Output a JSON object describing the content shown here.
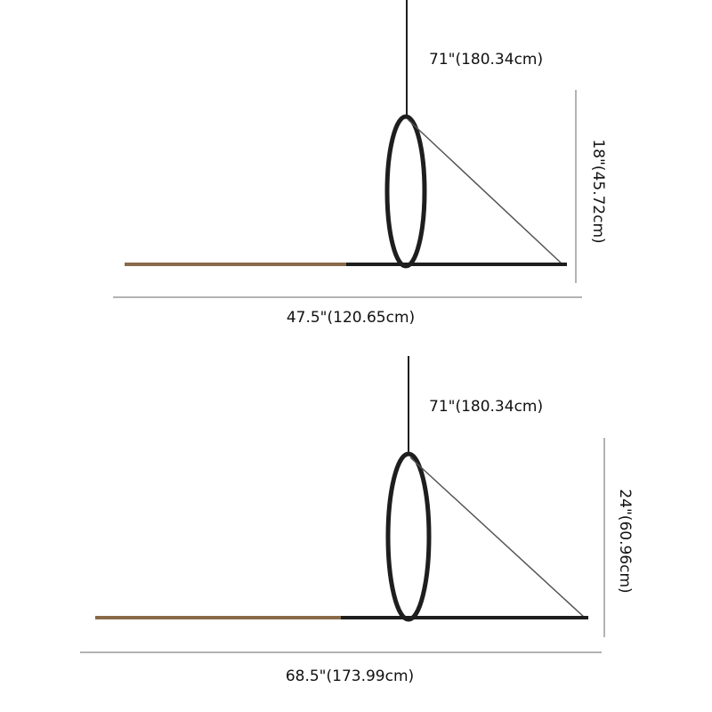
{
  "diagrams": [
    {
      "drop_label": "71\"(180.34cm)",
      "height_label": "18\"(45.72cm)",
      "width_label": "47.5\"(120.65cm)"
    },
    {
      "drop_label": "71\"(180.34cm)",
      "height_label": "24\"(60.96cm)",
      "width_label": "68.5\"(173.99cm)"
    }
  ],
  "colors": {
    "frame": "#1e1e1e",
    "wood": "#8a6a4a",
    "dimension_line": "#9a9a9a",
    "text": "#111111"
  }
}
